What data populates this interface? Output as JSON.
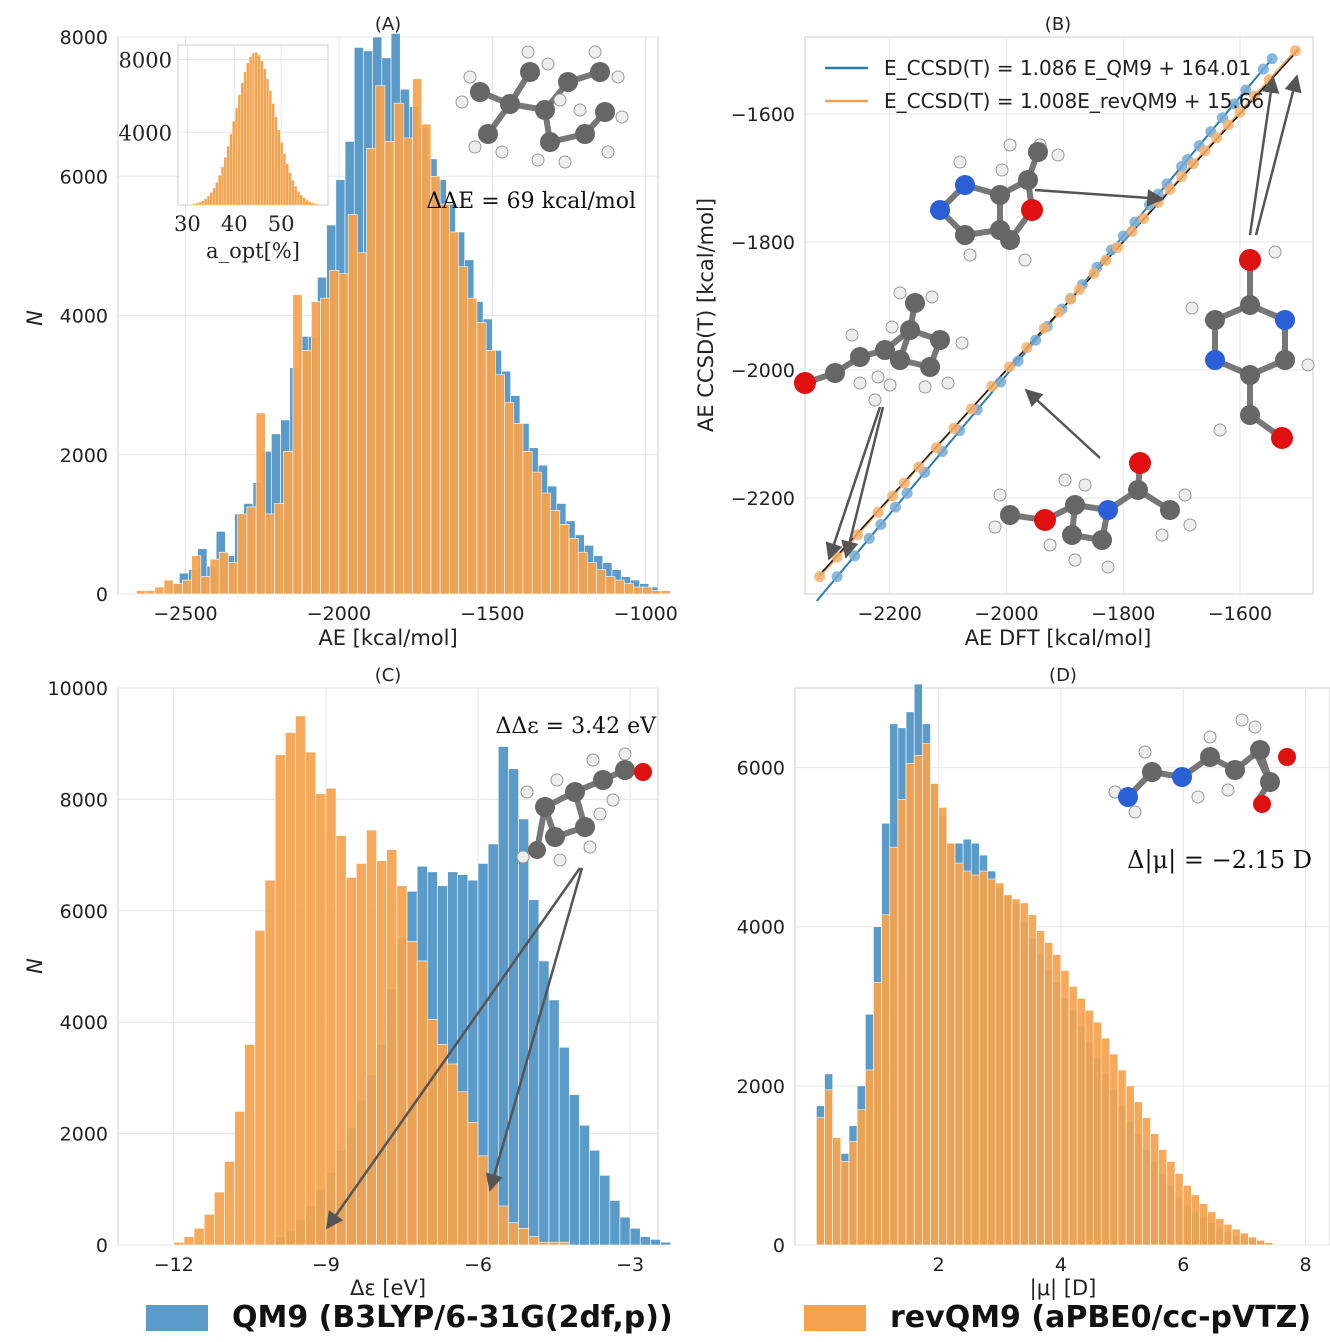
{
  "colors": {
    "qm9": "#5b9bc9",
    "rev": "#f5a24e",
    "grid": "#e6e6e6",
    "frame": "#cccccc",
    "arrow": "#555555"
  },
  "legend": {
    "qm9_label": "QM9 (B3LYP/6-31G(2df,p))",
    "rev_label": "revQM9 (aPBE0/cc-pVTZ)"
  },
  "chart_data": [
    {
      "id": "A",
      "type": "bar",
      "title": "(A)",
      "xlabel": "AE [kcal/mol]",
      "ylabel": "N",
      "xlim": [
        -2720,
        -960
      ],
      "ylim": [
        0,
        8000
      ],
      "xticks": [
        -2500,
        -2000,
        -1500,
        -1000
      ],
      "yticks": [
        0,
        2000,
        4000,
        6000,
        8000
      ],
      "annotation": "ΔAE = 69 kcal/mol",
      "bin_width": 30,
      "series": [
        {
          "name": "QM9 (B3LYP/6-31G(2df,p))",
          "x0": -2550,
          "values": [
            150,
            300,
            350,
            650,
            400,
            900,
            550,
            1150,
            1300,
            1600,
            2050,
            2300,
            2500,
            3250,
            3700,
            3700,
            4550,
            5300,
            5950,
            6500,
            7850,
            7800,
            8000,
            7700,
            8050,
            7250,
            7000,
            6700,
            6250,
            5950,
            5600,
            5200,
            4800,
            4200,
            3950,
            3500,
            3200,
            2850,
            2450,
            2100,
            1850,
            1550,
            1300,
            1050,
            850,
            700,
            550,
            450,
            350,
            250,
            200,
            150,
            100
          ]
        },
        {
          "name": "revQM9 (aPBE0/cc-pVTZ)",
          "x0": -2660,
          "values": [
            50,
            50,
            100,
            200,
            150,
            200,
            550,
            250,
            500,
            600,
            450,
            1150,
            1250,
            2600,
            1150,
            1300,
            2050,
            4300,
            3500,
            4200,
            4250,
            4650,
            4600,
            5450,
            4900,
            6400,
            7300,
            6500,
            7050,
            6550,
            7400,
            6750,
            6000,
            5600,
            5200,
            4700,
            4250,
            3900,
            3500,
            3150,
            2750,
            2450,
            2050,
            1750,
            1450,
            1200,
            1000,
            800,
            600,
            450,
            350,
            250,
            200,
            150,
            100,
            100,
            50,
            50
          ]
        }
      ],
      "inset": {
        "xlabel": "a_opt[%]",
        "xticks": [
          30,
          40,
          50
        ],
        "yticks": [
          4000,
          8000
        ],
        "xlim": [
          28,
          60
        ],
        "ylim": [
          0,
          8800
        ],
        "mean": 44.5,
        "sd": 4.2,
        "peak": 8400
      }
    },
    {
      "id": "B",
      "type": "scatter",
      "title": "(B)",
      "xlabel": "AE DFT [kcal/mol]",
      "ylabel": "AE CCSD(T) [kcal/mol]",
      "xlim": [
        -2345,
        -1475
      ],
      "ylim": [
        -2350,
        -1480
      ],
      "xticks": [
        -2200,
        -2000,
        -1800,
        -1600
      ],
      "yticks": [
        -2200,
        -2000,
        -1800,
        -1600
      ],
      "legend": [
        "E_CCSD(T) = 1.086 E_QM9 + 164.01",
        "E_CCSD(T) = 1.008E_revQM9 + 15.66"
      ],
      "series": [
        {
          "name": "QM9",
          "slope": 1.086,
          "intercept": 164.01,
          "x": [
            -2290,
            -2260,
            -2235,
            -2215,
            -2190,
            -2170,
            -2140,
            -2110,
            -2080,
            -2050,
            -2010,
            -1980,
            -1950,
            -1930,
            -1905,
            -1890,
            -1870,
            -1845,
            -1820,
            -1800,
            -1780,
            -1755,
            -1740,
            -1725,
            -1700,
            -1690,
            -1670,
            -1650,
            -1630,
            -1610,
            -1590,
            -1560,
            -1545
          ]
        },
        {
          "name": "revQM9",
          "slope": 1.008,
          "intercept": 15.66,
          "x": [
            -2320,
            -2290,
            -2255,
            -2220,
            -2195,
            -2175,
            -2150,
            -2120,
            -2090,
            -2060,
            -2025,
            -1995,
            -1965,
            -1935,
            -1910,
            -1890,
            -1875,
            -1850,
            -1830,
            -1810,
            -1785,
            -1765,
            -1740,
            -1720,
            -1700,
            -1680,
            -1660,
            -1640,
            -1620,
            -1600,
            -1575,
            -1550,
            -1505
          ]
        }
      ]
    },
    {
      "id": "C",
      "type": "bar",
      "title": "(C)",
      "xlabel": "Δε [eV]",
      "ylabel": "N",
      "xlim": [
        -13.1,
        -2.45
      ],
      "ylim": [
        0,
        10000
      ],
      "xticks": [
        -12,
        -9,
        -6,
        -3
      ],
      "yticks": [
        0,
        2000,
        4000,
        6000,
        8000,
        10000
      ],
      "annotation": "ΔΔε = 3.42 eV",
      "bin_width": 0.2,
      "series": [
        {
          "name": "QM9 (B3LYP/6-31G(2df,p))",
          "x0": -10.0,
          "values": [
            150,
            250,
            450,
            700,
            1000,
            1300,
            1700,
            2100,
            2600,
            3050,
            3600,
            4600,
            5500,
            6350,
            6800,
            6700,
            6450,
            6700,
            6650,
            6550,
            6850,
            7200,
            8950,
            8550,
            7650,
            6200,
            5100,
            4400,
            3550,
            2700,
            2150,
            1700,
            1250,
            800,
            500,
            300,
            150,
            100,
            50
          ]
        },
        {
          "name": "revQM9 (aPBE0/cc-pVTZ)",
          "x0": -12.0,
          "values": [
            50,
            150,
            300,
            550,
            950,
            1500,
            2400,
            3600,
            5650,
            6550,
            8800,
            9200,
            9500,
            8850,
            8100,
            8200,
            7350,
            6600,
            6850,
            7450,
            6900,
            7100,
            6450,
            5450,
            5100,
            4050,
            3600,
            3250,
            2750,
            2200,
            1600,
            1150,
            700,
            400,
            300,
            150,
            50,
            50,
            50
          ]
        }
      ]
    },
    {
      "id": "D",
      "type": "bar",
      "title": "(D)",
      "xlabel": "|μ| [D]",
      "ylabel": "",
      "xlim": [
        -0.35,
        8.4
      ],
      "ylim": [
        0,
        7000
      ],
      "xticks": [
        2,
        4,
        6,
        8
      ],
      "yticks": [
        0,
        2000,
        4000,
        6000
      ],
      "annotation": "Δ|μ| = −2.15 D",
      "bin_width": 0.1333,
      "series": [
        {
          "name": "QM9 (B3LYP/6-31G(2df,p))",
          "x0": 0.0,
          "values": [
            1750,
            2150,
            1300,
            1150,
            1500,
            2000,
            2900,
            4000,
            5300,
            6550,
            6500,
            6700,
            7050,
            6550,
            5800,
            5400,
            5050,
            5050,
            5100,
            5050,
            4900,
            4700,
            4500,
            4400,
            4300,
            4050,
            3850,
            3650,
            3450,
            3300,
            3100,
            2950,
            2750,
            2550,
            2350,
            2150,
            1950,
            1750,
            1550,
            1400,
            1200,
            1050,
            900,
            750,
            600,
            500,
            420,
            350,
            280,
            220,
            170,
            120,
            90,
            60,
            40,
            20
          ]
        },
        {
          "name": "revQM9 (aPBE0/cc-pVTZ)",
          "x0": 0.0,
          "values": [
            1600,
            1950,
            1350,
            1050,
            1300,
            1700,
            2200,
            3300,
            4150,
            5000,
            5600,
            6050,
            6150,
            6300,
            5800,
            5500,
            5050,
            4800,
            4700,
            4650,
            4700,
            4600,
            4550,
            4400,
            4350,
            4300,
            4150,
            3950,
            3800,
            3650,
            3450,
            3250,
            3100,
            2950,
            2800,
            2600,
            2400,
            2200,
            2000,
            1800,
            1600,
            1400,
            1200,
            1050,
            900,
            750,
            630,
            520,
            420,
            330,
            260,
            200,
            150,
            100,
            60,
            30
          ]
        }
      ]
    }
  ]
}
